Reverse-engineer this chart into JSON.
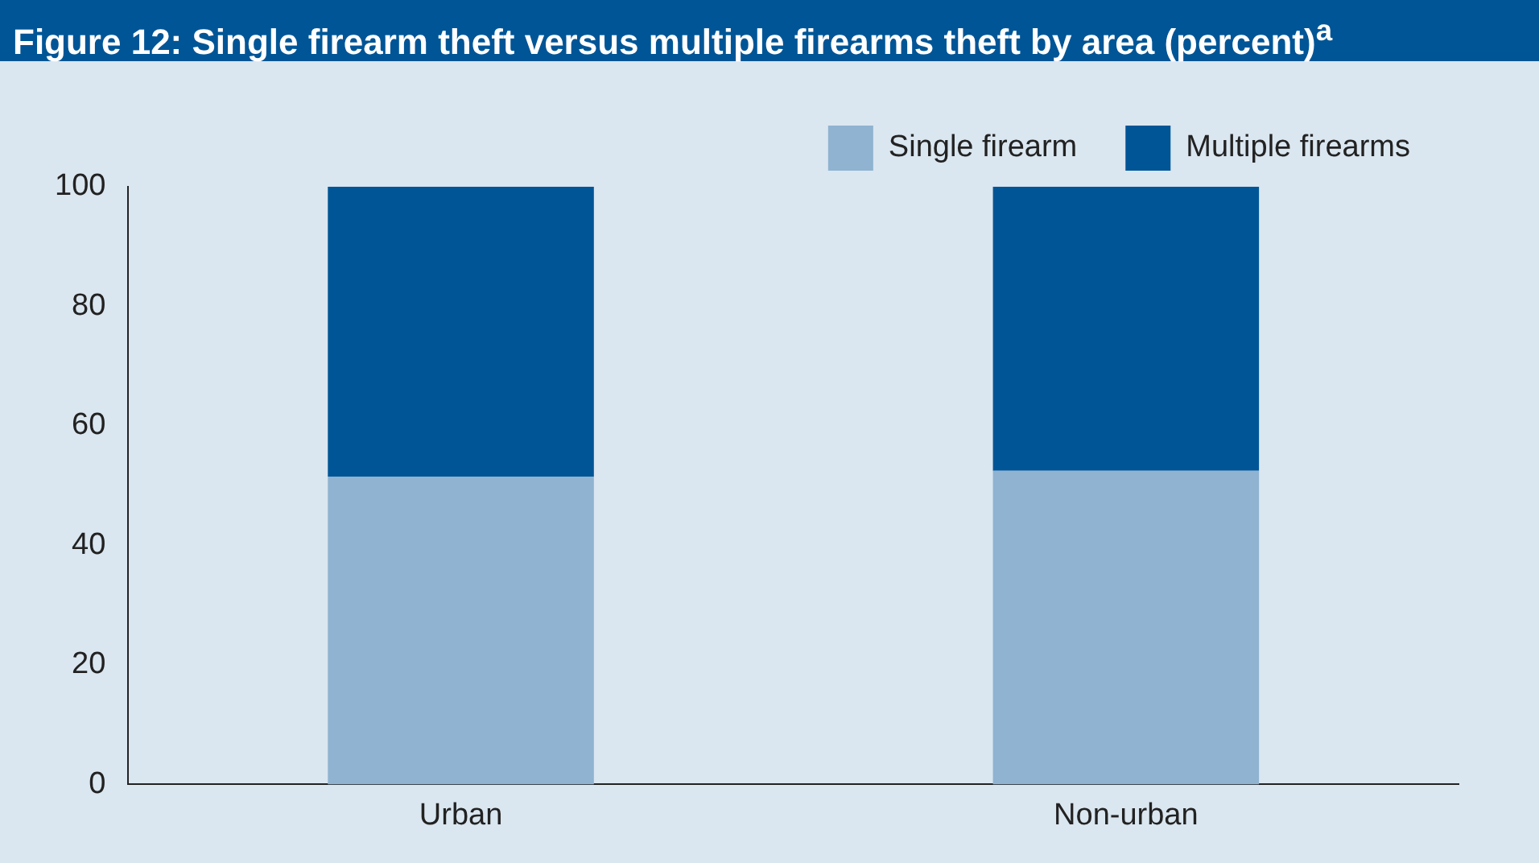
{
  "chart_data": {
    "type": "bar",
    "title": "Figure 12: Single firearm theft versus multiple firearms theft by area (percent)$^{a}$",
    "categories": [
      "Urban",
      "Non-urban"
    ],
    "stacked": true,
    "series": [
      {
        "name": "Single firearm",
        "color": "#8fb3d1",
        "values": [
          51.5,
          52.5
        ]
      },
      {
        "name": "Multiple firearms",
        "color": "#005596",
        "values": [
          48.5,
          47.5
        ]
      }
    ],
    "ylim": [
      0,
      100
    ],
    "yticks": [
      0,
      20,
      40,
      60,
      80,
      100
    ],
    "legend": "top right"
  }
}
